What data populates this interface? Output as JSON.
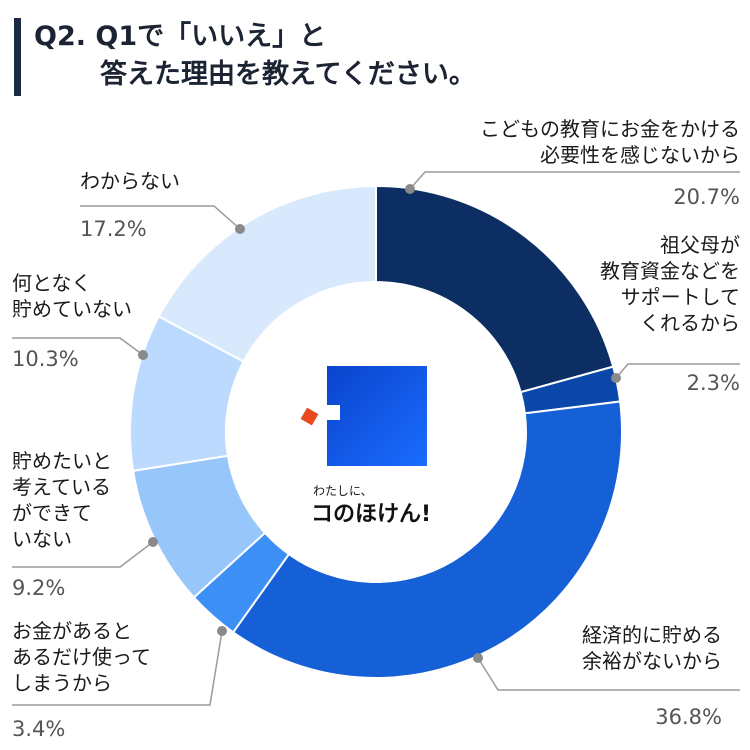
{
  "title": {
    "line1": "Q2. Q1で「いいえ」と",
    "line2": "答えた理由を教えてください。"
  },
  "logo": {
    "small": "わたしに、",
    "big": "コのほけん!"
  },
  "chart_data": {
    "type": "pie",
    "style": "donut",
    "slices": [
      {
        "label": "こどもの教育にお金をかける必要性を感じないから",
        "label_lines": [
          "こどもの教育にお金をかける",
          "必要性を感じないから"
        ],
        "value": 20.7,
        "value_text": "20.7%",
        "color": "#0c2e63"
      },
      {
        "label": "祖父母が教育資金などをサポートしてくれるから",
        "label_lines": [
          "祖父母が",
          "教育資金などを",
          "サポートして",
          "くれるから"
        ],
        "value": 2.3,
        "value_text": "2.3%",
        "color": "#0a47a8"
      },
      {
        "label": "経済的に貯める余裕がないから",
        "label_lines": [
          "経済的に貯める",
          "余裕がないから"
        ],
        "value": 36.8,
        "value_text": "36.8%",
        "color": "#1560d6"
      },
      {
        "label": "お金があるとあるだけ使ってしまうから",
        "label_lines": [
          "お金があると",
          "あるだけ使って",
          "しまうから"
        ],
        "value": 3.4,
        "value_text": "3.4%",
        "color": "#3b8ff5"
      },
      {
        "label": "貯めたいと考えているができていない",
        "label_lines": [
          "貯めたいと",
          "考えている",
          "ができて",
          "いない"
        ],
        "value": 9.2,
        "value_text": "9.2%",
        "color": "#97c6fa"
      },
      {
        "label": "何となく貯めていない",
        "label_lines": [
          "何となく",
          "貯めていない"
        ],
        "value": 10.3,
        "value_text": "10.3%",
        "color": "#bcdafd"
      },
      {
        "label": "わからない",
        "label_lines": [
          "わからない"
        ],
        "value": 17.2,
        "value_text": "17.2%",
        "color": "#d8e9fd"
      }
    ]
  }
}
